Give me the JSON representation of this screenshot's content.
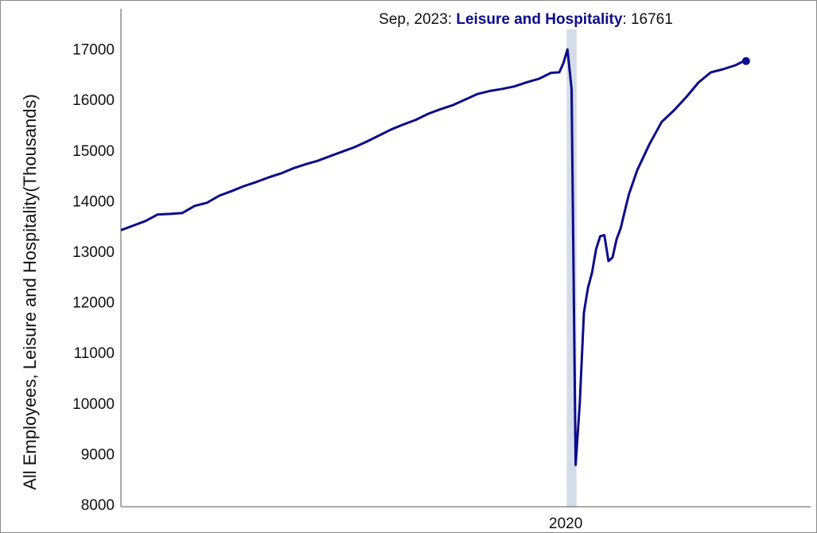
{
  "chart_data": {
    "type": "line",
    "title": "",
    "xlabel": "",
    "ylabel": "All Employees, Leisure and Hospitality(Thousands)",
    "ylim": [
      8000,
      17800
    ],
    "yticks": [
      8000,
      9000,
      10000,
      11000,
      12000,
      13000,
      14000,
      15000,
      16000,
      17000
    ],
    "xticks": [
      {
        "year": 2020,
        "label": "2020"
      }
    ],
    "grid": false,
    "recession_band": {
      "start": "2020-02",
      "end": "2020-04"
    },
    "series_color": "#0c0c8a",
    "band_color": "#d3dce8",
    "tooltip": {
      "date_label": "Sep, 2023",
      "series_name": "Leisure and Hospitality",
      "value_label": "16761"
    },
    "series": [
      {
        "name": "Leisure and Hospitality",
        "points": [
          [
            "2011-01",
            13420
          ],
          [
            "2011-04",
            13510
          ],
          [
            "2011-07",
            13600
          ],
          [
            "2011-10",
            13730
          ],
          [
            "2012-01",
            13740
          ],
          [
            "2012-04",
            13760
          ],
          [
            "2012-07",
            13900
          ],
          [
            "2012-10",
            13960
          ],
          [
            "2013-01",
            14100
          ],
          [
            "2013-04",
            14190
          ],
          [
            "2013-07",
            14290
          ],
          [
            "2013-10",
            14370
          ],
          [
            "2014-01",
            14460
          ],
          [
            "2014-04",
            14540
          ],
          [
            "2014-07",
            14640
          ],
          [
            "2014-10",
            14720
          ],
          [
            "2015-01",
            14790
          ],
          [
            "2015-04",
            14880
          ],
          [
            "2015-07",
            14970
          ],
          [
            "2015-10",
            15060
          ],
          [
            "2016-01",
            15170
          ],
          [
            "2016-04",
            15290
          ],
          [
            "2016-07",
            15410
          ],
          [
            "2016-10",
            15510
          ],
          [
            "2017-01",
            15600
          ],
          [
            "2017-04",
            15720
          ],
          [
            "2017-07",
            15810
          ],
          [
            "2017-10",
            15890
          ],
          [
            "2018-01",
            16000
          ],
          [
            "2018-04",
            16110
          ],
          [
            "2018-07",
            16170
          ],
          [
            "2018-10",
            16210
          ],
          [
            "2019-01",
            16260
          ],
          [
            "2019-04",
            16340
          ],
          [
            "2019-07",
            16410
          ],
          [
            "2019-10",
            16530
          ],
          [
            "2019-12",
            16540
          ],
          [
            "2020-01",
            16720
          ],
          [
            "2020-02",
            16990
          ],
          [
            "2020-03",
            16210
          ],
          [
            "2020-04",
            8780
          ],
          [
            "2020-05",
            10000
          ],
          [
            "2020-06",
            11790
          ],
          [
            "2020-07",
            12280
          ],
          [
            "2020-08",
            12580
          ],
          [
            "2020-09",
            13050
          ],
          [
            "2020-10",
            13300
          ],
          [
            "2020-11",
            13320
          ],
          [
            "2020-12",
            12810
          ],
          [
            "2021-01",
            12880
          ],
          [
            "2021-02",
            13240
          ],
          [
            "2021-03",
            13460
          ],
          [
            "2021-04",
            13800
          ],
          [
            "2021-05",
            14130
          ],
          [
            "2021-07",
            14600
          ],
          [
            "2021-10",
            15120
          ],
          [
            "2022-01",
            15560
          ],
          [
            "2022-04",
            15790
          ],
          [
            "2022-07",
            16050
          ],
          [
            "2022-10",
            16340
          ],
          [
            "2023-01",
            16540
          ],
          [
            "2023-04",
            16600
          ],
          [
            "2023-07",
            16680
          ],
          [
            "2023-09",
            16761
          ]
        ]
      }
    ]
  }
}
